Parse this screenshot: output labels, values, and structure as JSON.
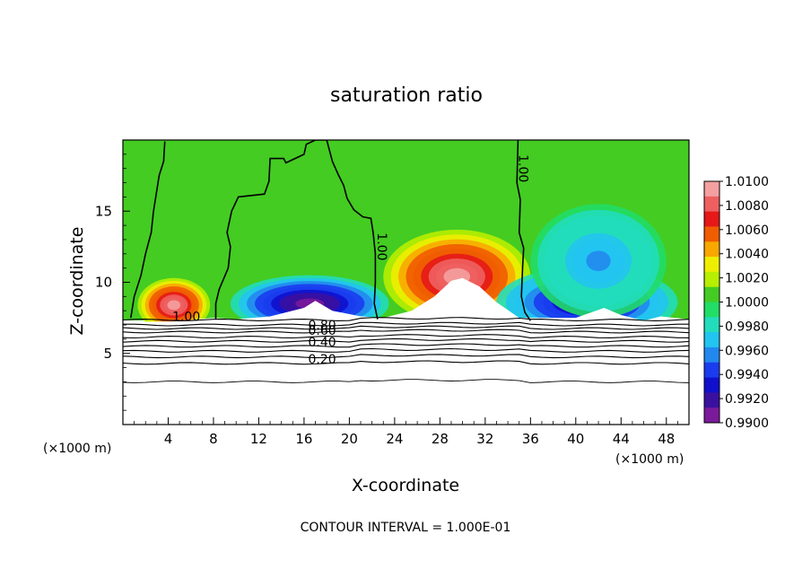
{
  "chart_data": {
    "type": "heatmap",
    "title": "saturation ratio",
    "xlabel": "X-coordinate",
    "ylabel": "Z-coordinate",
    "x_unit_left": "(×1000 m)",
    "x_unit_right": "(×1000 m)",
    "xlim": [
      0,
      50
    ],
    "ylim": [
      0,
      20
    ],
    "xticks": [
      4,
      8,
      12,
      16,
      20,
      24,
      28,
      32,
      36,
      40,
      44,
      48
    ],
    "yticks": [
      5,
      10,
      15
    ],
    "footer": "CONTOUR INTERVAL = 1.000E-01",
    "colorbar": {
      "min": 0.99,
      "max": 1.01,
      "ticks": [
        "1.0100",
        "1.0080",
        "1.0060",
        "1.0040",
        "1.0020",
        "1.0000",
        "0.9980",
        "0.9960",
        "0.9940",
        "0.9920",
        "0.9900"
      ],
      "colors": [
        "#f4a0a0",
        "#ee6060",
        "#e61818",
        "#f05c00",
        "#f8a800",
        "#eeee00",
        "#b8ee00",
        "#44cc22",
        "#22dd66",
        "#22ddbb",
        "#22c4f0",
        "#2288ee",
        "#1a3cee",
        "#1010cc",
        "#3a10a0",
        "#7a1a9a"
      ]
    },
    "contour_labels": [
      {
        "text": "1.00",
        "x": 5.6,
        "z": 7.3
      },
      {
        "text": "0.80",
        "x": 17.6,
        "z": 6.7
      },
      {
        "text": "0.60",
        "x": 17.6,
        "z": 6.3
      },
      {
        "text": "0.40",
        "x": 17.6,
        "z": 5.5
      },
      {
        "text": "0.20",
        "x": 17.6,
        "z": 4.3
      },
      {
        "text": "1.00",
        "x": 22.5,
        "z": 12.5
      },
      {
        "text": "1.00",
        "x": 35.0,
        "z": 18.0
      }
    ],
    "contour_one_lines": [
      [
        [
          3.7,
          19.9
        ],
        [
          3.6,
          18.5
        ],
        [
          3.2,
          17.5
        ],
        [
          3.0,
          16.5
        ],
        [
          2.7,
          15.0
        ],
        [
          2.5,
          13.5
        ],
        [
          2.0,
          12.0
        ],
        [
          1.6,
          10.5
        ],
        [
          1.0,
          9.0
        ],
        [
          0.7,
          7.5
        ]
      ],
      [
        [
          8.2,
          7.4
        ],
        [
          8.2,
          8.5
        ],
        [
          8.5,
          9.5
        ],
        [
          9.3,
          11.0
        ],
        [
          9.5,
          12.5
        ],
        [
          9.2,
          13.5
        ],
        [
          9.6,
          15.0
        ],
        [
          10.2,
          16.0
        ],
        [
          12.5,
          16.2
        ],
        [
          12.9,
          17.1
        ],
        [
          13.0,
          18.7
        ],
        [
          14.2,
          18.7
        ],
        [
          14.4,
          18.4
        ],
        [
          16.0,
          19.0
        ],
        [
          16.2,
          19.7
        ],
        [
          17.0,
          20.0
        ],
        [
          18.0,
          20.0
        ],
        [
          18.5,
          18.5
        ],
        [
          19.0,
          17.6
        ],
        [
          19.5,
          16.8
        ],
        [
          19.8,
          15.9
        ],
        [
          20.4,
          15.1
        ],
        [
          21.2,
          14.6
        ],
        [
          21.9,
          14.5
        ],
        [
          22.1,
          13.5
        ],
        [
          22.3,
          12.0
        ],
        [
          22.3,
          10.0
        ],
        [
          22.2,
          8.5
        ],
        [
          22.5,
          7.4
        ]
      ],
      [
        [
          34.9,
          20.0
        ],
        [
          34.8,
          17.0
        ],
        [
          35.1,
          15.8
        ],
        [
          35.0,
          13.5
        ],
        [
          35.4,
          12.4
        ],
        [
          35.3,
          11.0
        ],
        [
          35.2,
          9.0
        ],
        [
          35.5,
          7.9
        ],
        [
          36.0,
          7.3
        ]
      ]
    ],
    "blobs": [
      {
        "x": 4.5,
        "z": 8.4,
        "rx": 3.2,
        "rz": 1.9,
        "value": 1.0095
      },
      {
        "x": 29.5,
        "z": 10.4,
        "rx": 6.5,
        "rz": 3.3,
        "value": 1.0095
      },
      {
        "x": 16.5,
        "z": 8.5,
        "rx": 7.0,
        "rz": 2.0,
        "value": 0.9905
      },
      {
        "x": 41.0,
        "z": 8.6,
        "rx": 8.0,
        "rz": 2.5,
        "value": 0.992
      },
      {
        "x": 42.0,
        "z": 11.5,
        "rx": 6.0,
        "rz": 4.0,
        "value": 0.996
      }
    ]
  }
}
